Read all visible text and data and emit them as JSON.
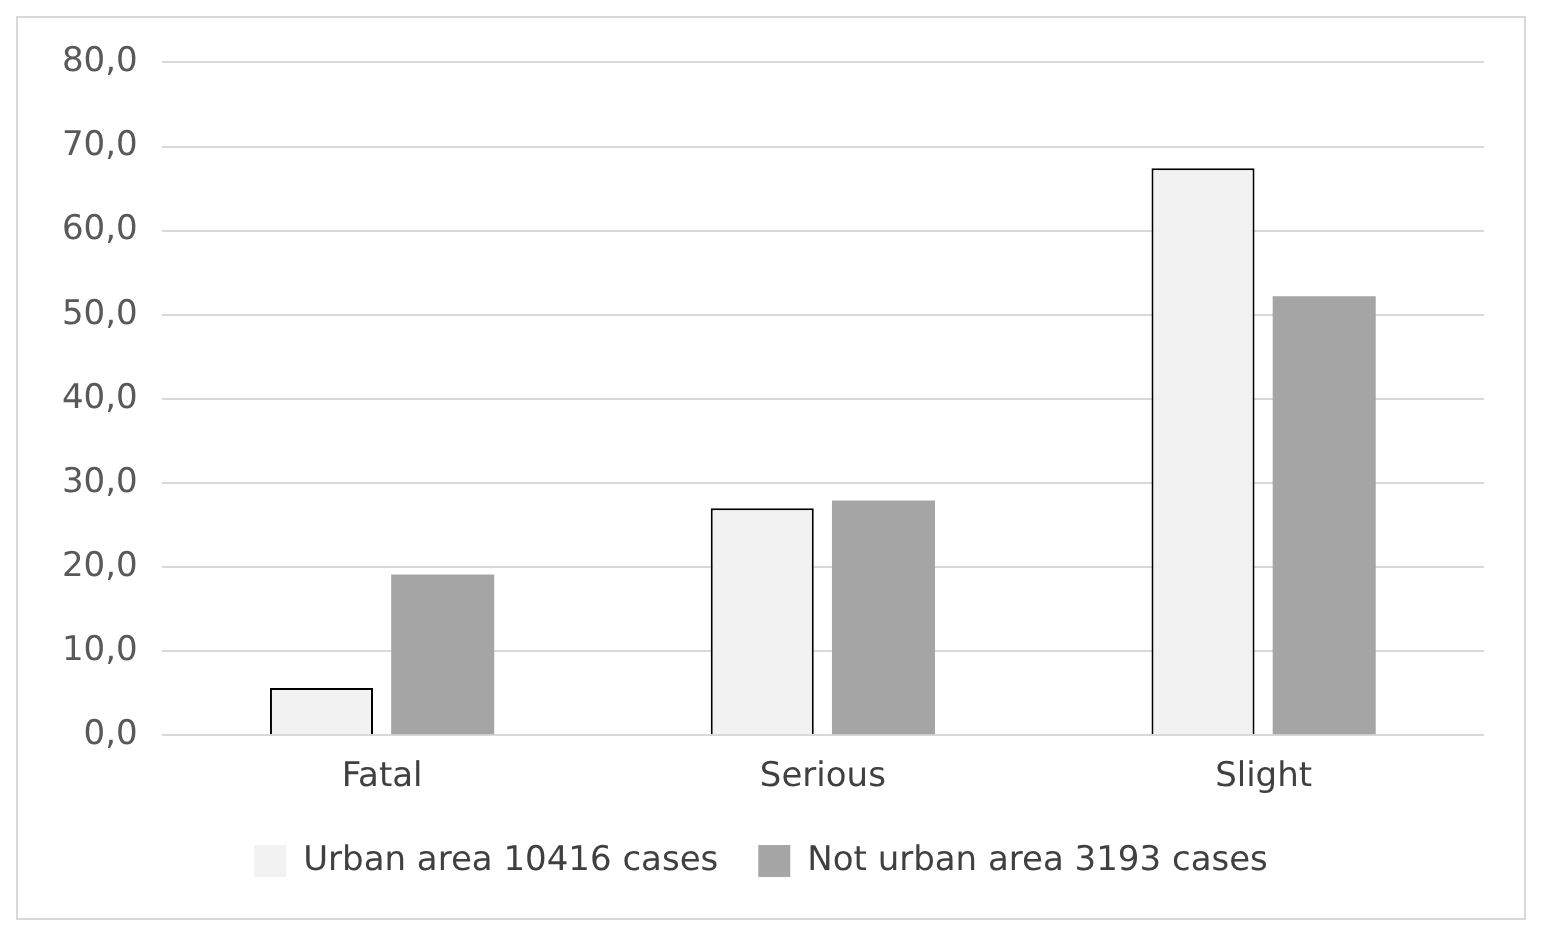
{
  "chart_data": {
    "type": "bar",
    "categories": [
      "Fatal",
      "Serious",
      "Slight"
    ],
    "series": [
      {
        "name": "Urban area 10416 cases",
        "color": "#f2f2f2",
        "values": [
          5.6,
          27.0,
          67.4
        ]
      },
      {
        "name": "Not urban area 3193 cases",
        "color": "#a5a5a5",
        "values": [
          19.1,
          27.9,
          52.2
        ]
      }
    ],
    "ylim": [
      0,
      80
    ],
    "yticks": [
      {
        "value": 0,
        "label": "0,0"
      },
      {
        "value": 10,
        "label": "10,0"
      },
      {
        "value": 20,
        "label": "20,0"
      },
      {
        "value": 30,
        "label": "30,0"
      },
      {
        "value": 40,
        "label": "40,0"
      },
      {
        "value": 50,
        "label": "50,0"
      },
      {
        "value": 60,
        "label": "60,0"
      },
      {
        "value": 70,
        "label": "70,0"
      },
      {
        "value": 80,
        "label": "80,0"
      }
    ],
    "grid": "y",
    "legend": "bottom"
  }
}
